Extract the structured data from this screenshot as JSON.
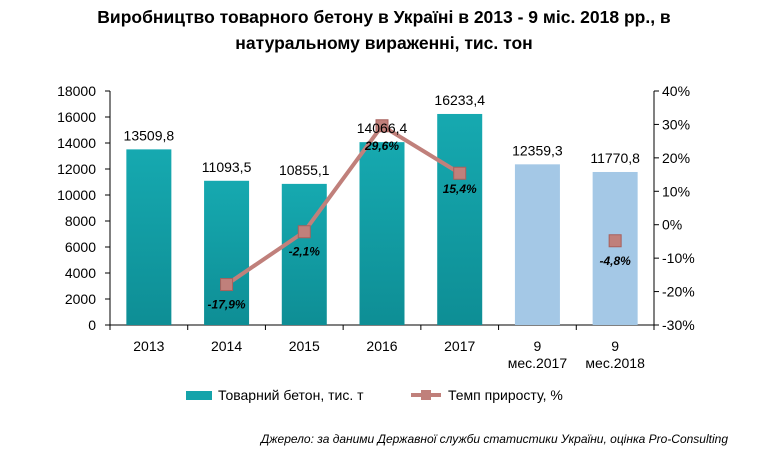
{
  "title_lines": [
    "Виробництво товарного бетону в Україні в 2013 - 9 міс. 2018 рр., в",
    "натуральному вираженні, тис. тон"
  ],
  "source": "Джерело: за даними Державної служби статистики України, оцінка Pro-Consulting",
  "colors": {
    "bar": "#15A3AA",
    "bar_partial": "#A4C8E6",
    "line": "#C0807B",
    "marker": "#C0807B"
  },
  "chart_data": {
    "type": "bar",
    "categories": [
      [
        "2013"
      ],
      [
        "2014"
      ],
      [
        "2015"
      ],
      [
        "2016"
      ],
      [
        "2017"
      ],
      [
        "9",
        "мес.2017"
      ],
      [
        "9",
        "мес.2018"
      ]
    ],
    "series": [
      {
        "name": "Товарний бетон, тис. т",
        "type": "bar",
        "axis": "left",
        "values": [
          13509.8,
          11093.5,
          10855.1,
          14066.4,
          16233.4,
          12359.3,
          11770.8
        ],
        "labels": [
          "13509,8",
          "11093,5",
          "10855,1",
          "14066,4",
          "16233,4",
          "12359,3",
          "11770,8"
        ],
        "partial_period": [
          false,
          false,
          false,
          false,
          false,
          true,
          true
        ]
      },
      {
        "name": "Темп приросту, %",
        "type": "line",
        "axis": "right",
        "values": [
          null,
          -17.9,
          -2.1,
          29.6,
          15.4,
          null,
          -4.8
        ],
        "labels": [
          "",
          "-17,9%",
          "-2,1%",
          "29,6%",
          "15,4%",
          "",
          "-4,8%"
        ]
      }
    ],
    "y_left": {
      "min": 0,
      "max": 18000,
      "ticks": [
        "0",
        "2000",
        "4000",
        "6000",
        "8000",
        "10000",
        "12000",
        "14000",
        "16000",
        "18000"
      ]
    },
    "y_right": {
      "min": -30,
      "max": 40,
      "ticks": [
        "-30%",
        "-20%",
        "-10%",
        "0%",
        "10%",
        "20%",
        "30%",
        "40%"
      ]
    },
    "legend": [
      "Товарний бетон, тис. т",
      "Темп приросту, %"
    ],
    "legend_position": "bottom"
  }
}
